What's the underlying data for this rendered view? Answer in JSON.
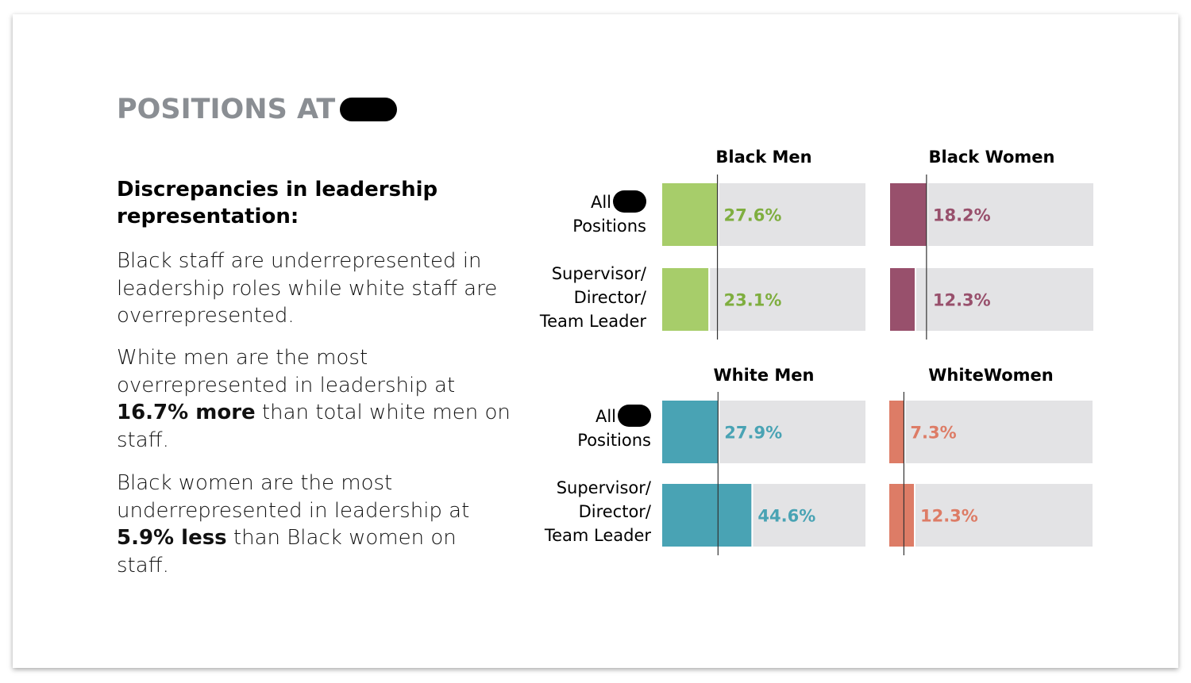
{
  "page": {
    "title": "POSITIONS AT",
    "subhead": "Discrepancies in leadership representation:",
    "paragraph1": "Black staff are underrepresented in leadership roles while white staff are overrepresented.",
    "paragraph2": {
      "pre": "White men are the most overrepresented in leadership at ",
      "bold": "16.7% more",
      "post": " than total white men on staff."
    },
    "paragraph3": {
      "pre": "Black women are the most underrepresented in leadership at ",
      "bold": "5.9% less",
      "post": " than Black women on staff."
    }
  },
  "row_labels": {
    "all_line1": "All",
    "all_line2": "Positions",
    "lead_line1": "Supervisor/",
    "lead_line2": "Director/",
    "lead_line3": "Team Leader"
  },
  "chart_data": [
    {
      "type": "bar",
      "orientation": "horizontal",
      "title": "Black Men",
      "categories": [
        "All Positions",
        "Supervisor/Director/Team Leader"
      ],
      "values": [
        27.6,
        23.1
      ],
      "labels": [
        "27.6%",
        "23.1%"
      ],
      "unit": "%",
      "xlim": [
        0,
        100
      ],
      "reference_value": 27.6,
      "color": "#a7cd6a",
      "label_color": "#7fae3f",
      "track_color": "#e3e3e5"
    },
    {
      "type": "bar",
      "orientation": "horizontal",
      "title": "Black Women",
      "categories": [
        "All Positions",
        "Supervisor/Director/Team Leader"
      ],
      "values": [
        18.2,
        12.3
      ],
      "labels": [
        "18.2%",
        "12.3%"
      ],
      "unit": "%",
      "xlim": [
        0,
        100
      ],
      "reference_value": 18.2,
      "color": "#98506c",
      "label_color": "#98506c",
      "track_color": "#e3e3e5"
    },
    {
      "type": "bar",
      "orientation": "horizontal",
      "title": "White Men",
      "categories": [
        "All Positions",
        "Supervisor/Director/Team Leader"
      ],
      "values": [
        27.9,
        44.6
      ],
      "labels": [
        "27.9%",
        "44.6%"
      ],
      "unit": "%",
      "xlim": [
        0,
        100
      ],
      "reference_value": 27.9,
      "color": "#49a3b4",
      "label_color": "#49a3b4",
      "track_color": "#e3e3e5"
    },
    {
      "type": "bar",
      "orientation": "horizontal",
      "title": "WhiteWomen",
      "categories": [
        "All Positions",
        "Supervisor/Director/Team Leader"
      ],
      "values": [
        7.3,
        12.3
      ],
      "labels": [
        "7.3%",
        "12.3%"
      ],
      "unit": "%",
      "xlim": [
        0,
        100
      ],
      "reference_value": 7.3,
      "color": "#dd7c66",
      "label_color": "#dd7c66",
      "track_color": "#e3e3e5"
    }
  ]
}
